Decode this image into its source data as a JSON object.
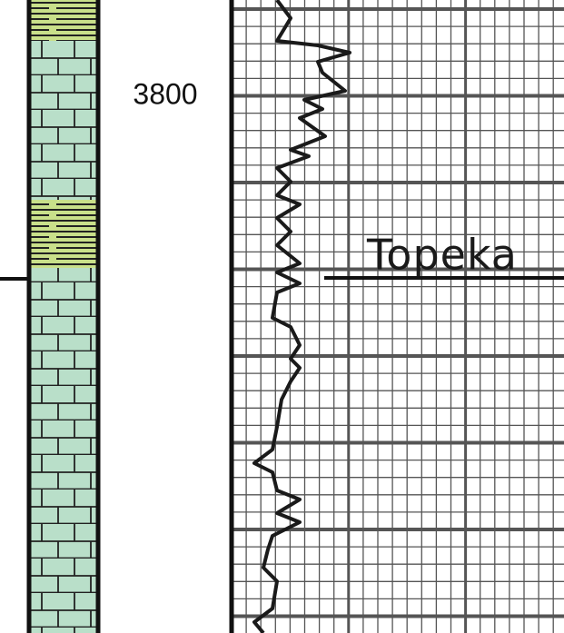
{
  "depth_label": "3800",
  "formation": {
    "name": "Topeka"
  }
}
